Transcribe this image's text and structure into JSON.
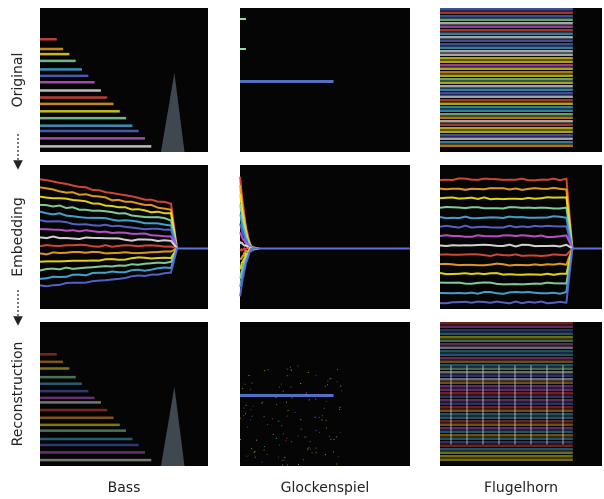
{
  "rows": [
    "Original",
    "Embedding",
    "Reconstruction"
  ],
  "columns": [
    "Bass",
    "Glockenspiel",
    "Flugelhorn"
  ]
}
